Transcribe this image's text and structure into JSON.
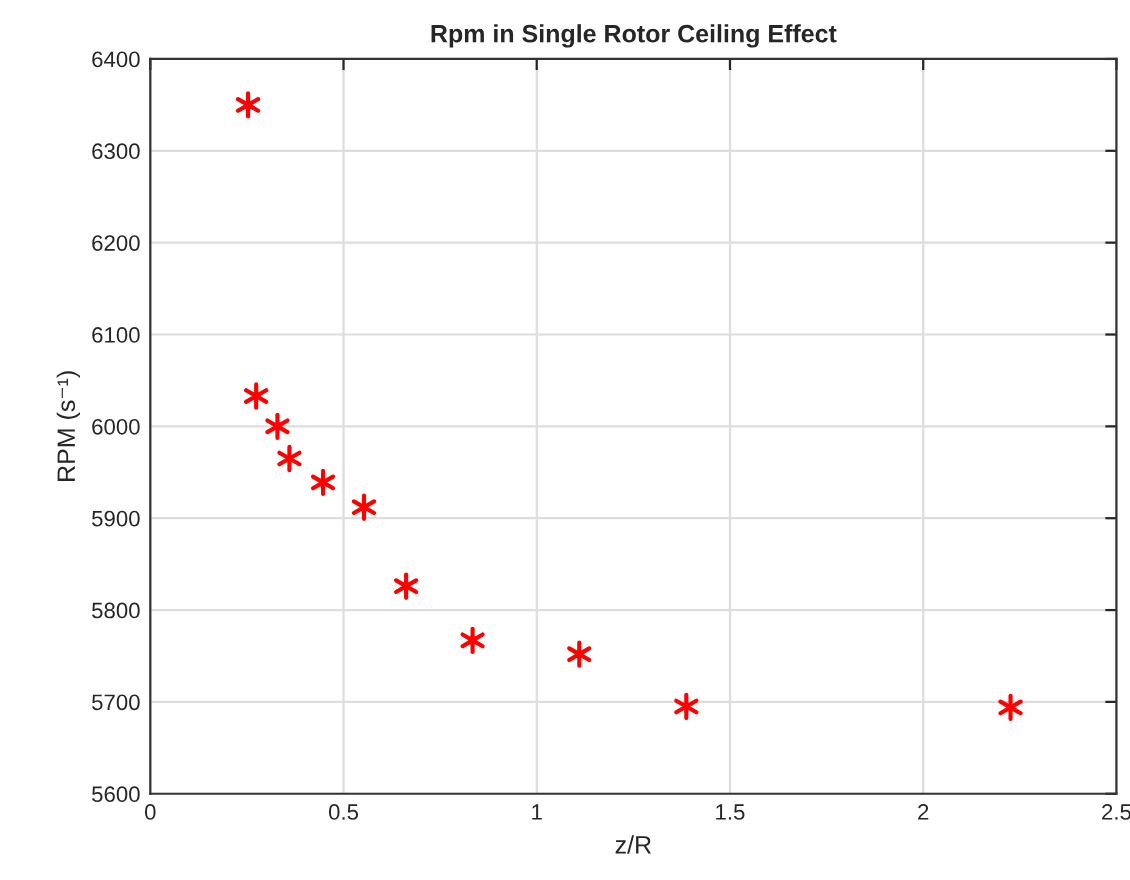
{
  "chart_data": {
    "type": "scatter",
    "title": "Rpm in Single Rotor Ceiling Effect",
    "xlabel": "z/R",
    "ylabel": "RPM (s⁻¹)",
    "x": [
      0.253,
      0.274,
      0.329,
      0.36,
      0.447,
      0.553,
      0.662,
      0.834,
      1.11,
      1.387,
      2.226
    ],
    "series": [
      {
        "color": "#ff0000",
        "values": [
          6350,
          6033,
          6000,
          5965,
          5939,
          5912,
          5826,
          5767,
          5752,
          5695,
          5694
        ]
      }
    ],
    "marker": "cross",
    "xlim": [
      0,
      2.5
    ],
    "xticks": [
      0,
      0.5,
      1,
      1.5,
      2,
      2.5
    ],
    "ylim": [
      5600,
      6400
    ],
    "yticks": [
      5600,
      5700,
      5800,
      5900,
      6000,
      6100,
      6200,
      6300,
      6400
    ],
    "grid": true,
    "legend": false
  }
}
